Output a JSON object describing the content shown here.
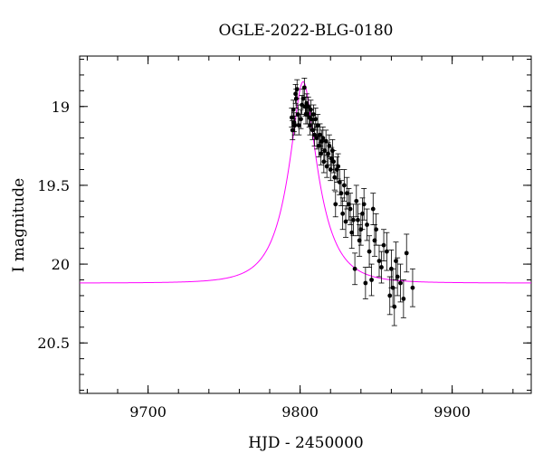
{
  "chart_data": {
    "type": "scatter",
    "title": "OGLE-2022-BLG-0180",
    "xlabel": "HJD - 2450000",
    "ylabel": "I magnitude",
    "xlim": [
      9655,
      9952
    ],
    "ylim": [
      20.82,
      18.68
    ],
    "y_inverted": true,
    "x_major_ticks": [
      9700,
      9800,
      9900
    ],
    "x_minor_step": 20,
    "y_major_ticks": [
      19,
      19.5,
      20,
      20.5
    ],
    "y_tick_labels": [
      "19",
      "19.5",
      "20",
      "20.5"
    ],
    "y_minor_step": 0.1,
    "grid": false,
    "model_color": "#ff00ff",
    "point_color": "#000000",
    "model": {
      "t0": 9802,
      "tE": 20,
      "u0": 0.32,
      "baseline_mag": 20.12,
      "line_width": 1
    },
    "series": [
      {
        "type": "scatter",
        "x": [
          9794.5,
          9795,
          9795.6,
          9796,
          9796.5,
          9797,
          9797.4,
          9798,
          9798.6,
          9799.2,
          9800.5,
          9801.2,
          9802,
          9802.8,
          9803.4,
          9803.8,
          9804.3,
          9804.8,
          9805.4,
          9806,
          9806.5,
          9807,
          9807.5,
          9808.2,
          9808.8,
          9809.5,
          9810.2,
          9811,
          9811.6,
          9812.3,
          9813,
          9813.7,
          9814.3,
          9815,
          9815.6,
          9816.2,
          9817,
          9817.6,
          9818.4,
          9819.2,
          9820,
          9820.6,
          9821.3,
          9822,
          9822.7,
          9823.3,
          9824.2,
          9825,
          9826,
          9827,
          9828,
          9829,
          9830,
          9830.8,
          9832,
          9833,
          9834,
          9835,
          9836,
          9837,
          9838,
          9839,
          9840,
          9841,
          9842,
          9843,
          9844,
          9845.5,
          9847,
          9848,
          9849,
          9850,
          9852,
          9853.5,
          9855,
          9857,
          9859,
          9860,
          9861,
          9862,
          9863,
          9864,
          9866,
          9868,
          9870,
          9874
        ],
        "y": [
          19.07,
          19.15,
          19.02,
          19.1,
          19.12,
          18.92,
          18.95,
          18.89,
          19.05,
          19.12,
          19.08,
          18.99,
          18.95,
          18.88,
          19.0,
          19.05,
          18.98,
          19.05,
          19.0,
          19.07,
          19.12,
          19.02,
          19.08,
          19.15,
          19.05,
          19.18,
          19.08,
          19.2,
          19.12,
          19.25,
          19.18,
          19.3,
          19.22,
          19.2,
          19.35,
          19.28,
          19.22,
          19.38,
          19.3,
          19.25,
          19.4,
          19.33,
          19.28,
          19.35,
          19.45,
          19.62,
          19.4,
          19.38,
          19.48,
          19.55,
          19.68,
          19.5,
          19.73,
          19.55,
          19.62,
          19.65,
          19.8,
          19.72,
          20.03,
          19.6,
          19.72,
          19.85,
          19.78,
          19.68,
          19.62,
          20.12,
          19.75,
          19.92,
          20.1,
          19.65,
          19.85,
          19.78,
          19.98,
          20.02,
          19.88,
          19.92,
          20.2,
          20.03,
          20.15,
          20.27,
          19.98,
          20.08,
          20.12,
          20.22,
          19.93,
          20.15
        ],
        "yerr": [
          0.06,
          0.06,
          0.06,
          0.06,
          0.06,
          0.06,
          0.06,
          0.06,
          0.06,
          0.06,
          0.06,
          0.06,
          0.06,
          0.06,
          0.06,
          0.06,
          0.06,
          0.06,
          0.06,
          0.06,
          0.06,
          0.06,
          0.06,
          0.06,
          0.06,
          0.07,
          0.07,
          0.07,
          0.07,
          0.07,
          0.07,
          0.07,
          0.07,
          0.07,
          0.07,
          0.07,
          0.07,
          0.07,
          0.07,
          0.07,
          0.07,
          0.07,
          0.07,
          0.07,
          0.08,
          0.08,
          0.08,
          0.08,
          0.08,
          0.08,
          0.1,
          0.1,
          0.1,
          0.1,
          0.1,
          0.1,
          0.1,
          0.1,
          0.1,
          0.1,
          0.1,
          0.1,
          0.1,
          0.1,
          0.1,
          0.1,
          0.1,
          0.1,
          0.1,
          0.1,
          0.1,
          0.1,
          0.1,
          0.1,
          0.1,
          0.12,
          0.12,
          0.12,
          0.12,
          0.12,
          0.12,
          0.12,
          0.12,
          0.12,
          0.12,
          0.12
        ]
      }
    ]
  }
}
